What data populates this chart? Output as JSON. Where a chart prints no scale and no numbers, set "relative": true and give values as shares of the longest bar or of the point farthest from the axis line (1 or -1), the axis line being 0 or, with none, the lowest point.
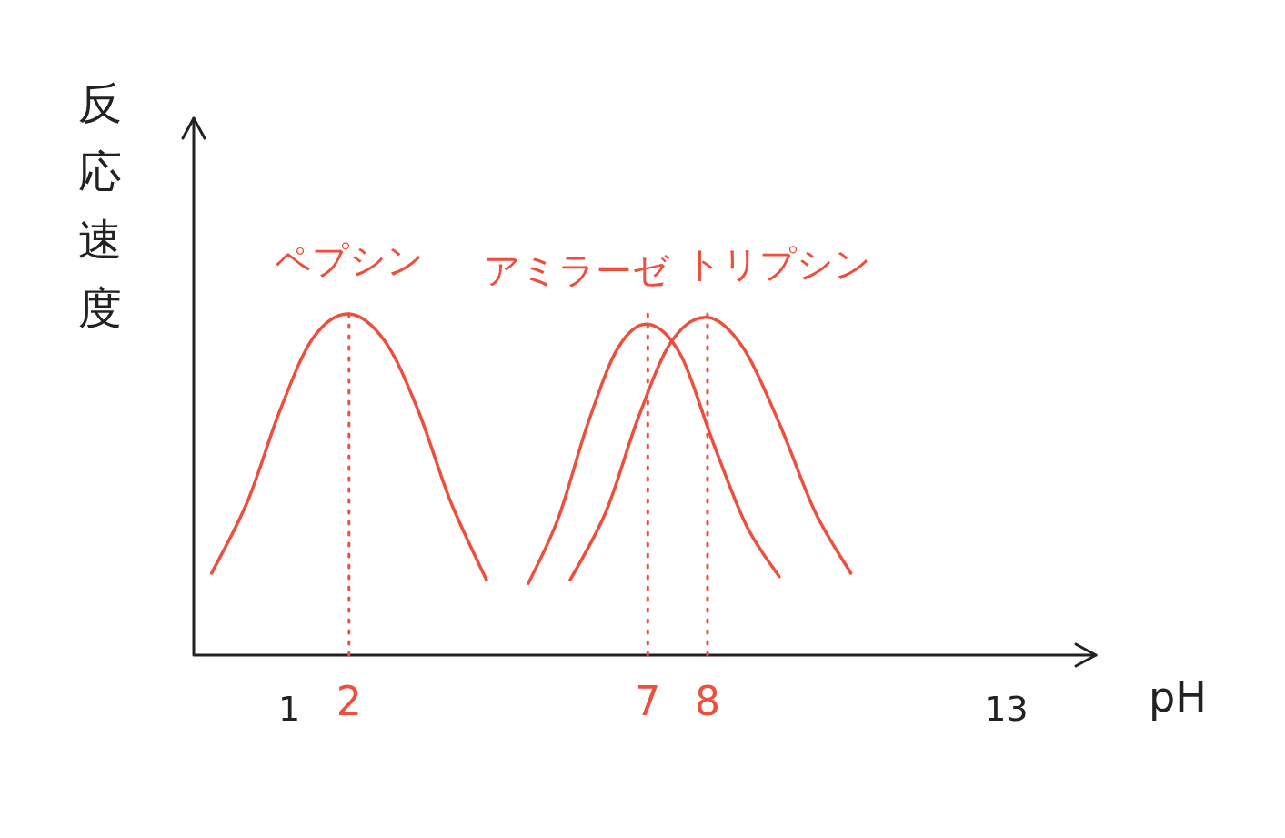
{
  "chart_data": {
    "type": "line",
    "relative": true,
    "xlabel": "pH",
    "ylabel": "反応速度",
    "xlim": [
      -0.6,
      14.5
    ],
    "xticks": [
      1,
      13
    ],
    "grid": false,
    "legend": false,
    "marker": "none",
    "line_style": "solid",
    "series": [
      {
        "name": "ペプシン",
        "color": "#f04e3c",
        "x": [
          -0.3,
          0.3,
          0.85,
          1.4,
          2,
          2.6,
          3.15,
          3.7,
          4.3
        ],
        "values": [
          0.24,
          0.45,
          0.72,
          0.93,
          1,
          0.92,
          0.72,
          0.45,
          0.22
        ]
      },
      {
        "name": "アミラーゼ",
        "color": "#f04e3c",
        "x": [
          5.0,
          5.5,
          6.0,
          6.5,
          7,
          7.55,
          8.1,
          8.65,
          9.2
        ],
        "values": [
          0.21,
          0.4,
          0.68,
          0.9,
          0.97,
          0.88,
          0.62,
          0.38,
          0.23
        ]
      },
      {
        "name": "トリプシン",
        "color": "#f04e3c",
        "x": [
          5.7,
          6.3,
          6.85,
          7.4,
          8,
          8.6,
          9.2,
          9.8,
          10.4
        ],
        "values": [
          0.22,
          0.42,
          0.7,
          0.92,
          0.99,
          0.9,
          0.68,
          0.42,
          0.24
        ]
      }
    ],
    "ref_lines": [
      {
        "axis": "x",
        "value": 2,
        "label": "2",
        "color": "#f04e3c",
        "line_style": "dotted"
      },
      {
        "axis": "x",
        "value": 7,
        "label": "7",
        "color": "#f04e3c",
        "line_style": "dotted"
      },
      {
        "axis": "x",
        "value": 8,
        "label": "8",
        "color": "#f04e3c",
        "line_style": "dotted"
      }
    ]
  }
}
